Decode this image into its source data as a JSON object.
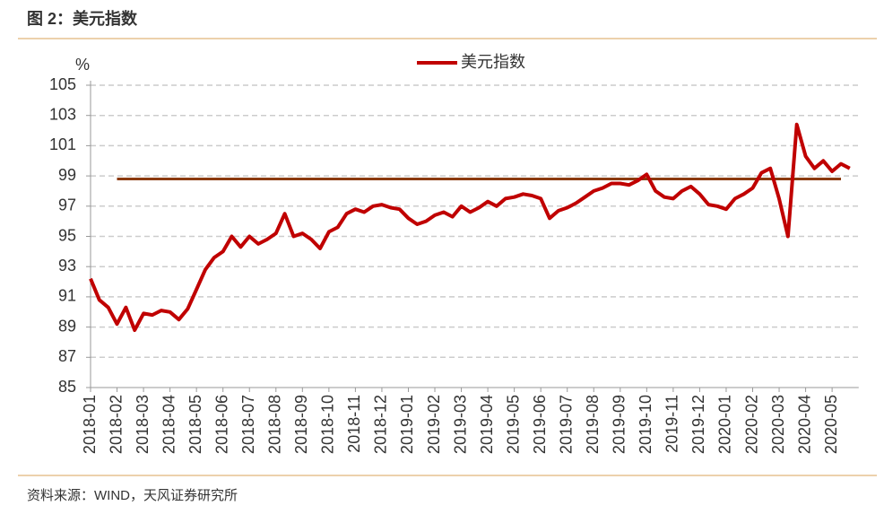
{
  "header": {
    "title": "图 2：美元指数"
  },
  "chart_data": {
    "type": "line",
    "y_unit": "%",
    "categories": [
      "2018-01",
      null,
      null,
      "2018-02",
      null,
      null,
      "2018-03",
      null,
      null,
      "2018-04",
      null,
      null,
      "2018-05",
      null,
      null,
      "2018-06",
      null,
      null,
      "2018-07",
      null,
      null,
      "2018-08",
      null,
      null,
      "2018-09",
      null,
      null,
      "2018-10",
      null,
      null,
      "2018-11",
      null,
      null,
      "2018-12",
      null,
      null,
      "2019-01",
      null,
      null,
      "2019-02",
      null,
      null,
      "2019-03",
      null,
      null,
      "2019-04",
      null,
      null,
      "2019-05",
      null,
      null,
      "2019-06",
      null,
      null,
      "2019-07",
      null,
      null,
      "2019-08",
      null,
      null,
      "2019-09",
      null,
      null,
      "2019-10",
      null,
      null,
      "2019-11",
      null,
      null,
      "2019-12",
      null,
      null,
      "2020-01",
      null,
      null,
      "2020-02",
      null,
      null,
      "2020-03",
      null,
      null,
      "2020-04",
      null,
      null,
      "2020-05",
      null,
      null
    ],
    "series": [
      {
        "name": "美元指数",
        "color": "#c00000",
        "width": 4,
        "values": [
          92.2,
          90.8,
          90.3,
          89.2,
          90.3,
          88.8,
          89.9,
          89.8,
          90.1,
          90.0,
          89.5,
          90.2,
          91.5,
          92.8,
          93.6,
          94.0,
          95.0,
          94.3,
          95.0,
          94.5,
          94.8,
          95.2,
          96.5,
          95.0,
          95.2,
          94.8,
          94.2,
          95.3,
          95.6,
          96.5,
          96.8,
          96.6,
          97.0,
          97.1,
          96.9,
          96.8,
          96.2,
          95.8,
          96.0,
          96.4,
          96.6,
          96.3,
          97.0,
          96.6,
          96.9,
          97.3,
          97.0,
          97.5,
          97.6,
          97.8,
          97.7,
          97.5,
          96.2,
          96.7,
          96.9,
          97.2,
          97.6,
          98.0,
          98.2,
          98.5,
          98.5,
          98.4,
          98.7,
          99.1,
          98.0,
          97.6,
          97.5,
          98.0,
          98.3,
          97.8,
          97.1,
          97.0,
          96.8,
          97.5,
          97.8,
          98.2,
          99.2,
          99.5,
          97.5,
          95.0,
          102.4,
          100.3,
          99.5,
          100.0,
          99.3,
          99.8,
          99.5
        ]
      },
      {
        "color": "#8b3a0f",
        "width": 3,
        "values": [
          null,
          null,
          null,
          98.8,
          98.8,
          98.8,
          98.8,
          98.8,
          98.8,
          98.8,
          98.8,
          98.8,
          98.8,
          98.8,
          98.8,
          98.8,
          98.8,
          98.8,
          98.8,
          98.8,
          98.8,
          98.8,
          98.8,
          98.8,
          98.8,
          98.8,
          98.8,
          98.8,
          98.8,
          98.8,
          98.8,
          98.8,
          98.8,
          98.8,
          98.8,
          98.8,
          98.8,
          98.8,
          98.8,
          98.8,
          98.8,
          98.8,
          98.8,
          98.8,
          98.8,
          98.8,
          98.8,
          98.8,
          98.8,
          98.8,
          98.8,
          98.8,
          98.8,
          98.8,
          98.8,
          98.8,
          98.8,
          98.8,
          98.8,
          98.8,
          98.8,
          98.8,
          98.8,
          98.8,
          98.8,
          98.8,
          98.8,
          98.8,
          98.8,
          98.8,
          98.8,
          98.8,
          98.8,
          98.8,
          98.8,
          98.8,
          98.8,
          98.8,
          98.8,
          98.8,
          98.8,
          98.8,
          98.8,
          98.8,
          98.8,
          98.8,
          null
        ]
      }
    ],
    "ylim": [
      85,
      105
    ],
    "yticks": [
      85,
      87,
      89,
      91,
      93,
      95,
      97,
      99,
      101,
      103,
      105
    ],
    "grid": true,
    "legend": "top"
  },
  "footer": {
    "source": "资料来源：WIND，天风证券研究所"
  }
}
